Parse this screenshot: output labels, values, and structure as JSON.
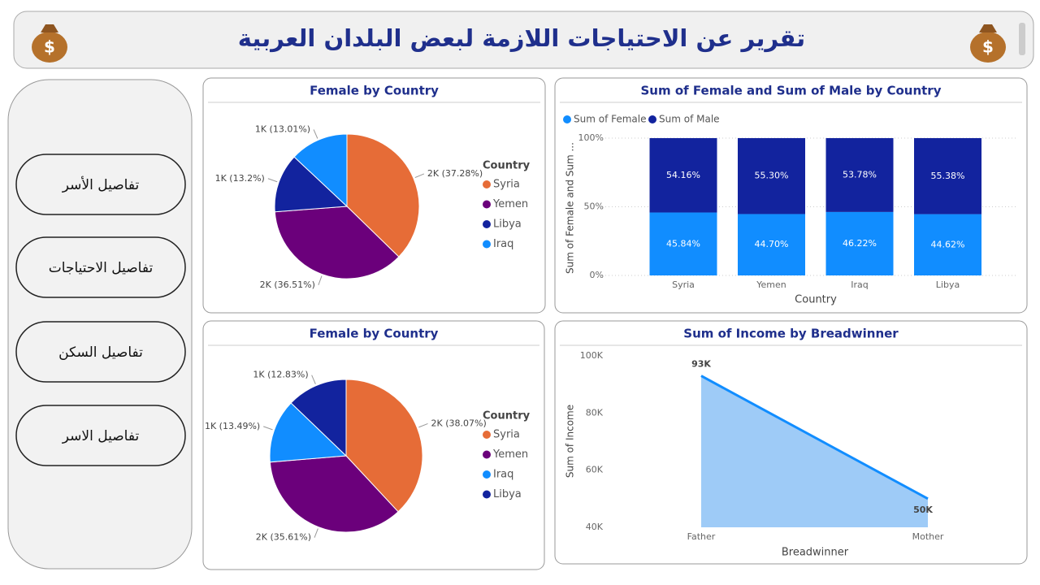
{
  "header": {
    "title": "تقرير عن الاحتياجات اللازمة لبعض البلدان العربية"
  },
  "nav": [
    "تفاصيل الأسر",
    "تفاصيل الاحتياجات",
    "تفاصيل السكن",
    "تفاصيل الاسر"
  ],
  "chart_data": [
    {
      "type": "pie",
      "title": "Female by Country",
      "legend_title": "Country",
      "categories": [
        "Syria",
        "Yemen",
        "Libya",
        "Iraq"
      ],
      "values": [
        37.28,
        36.51,
        13.2,
        13.01
      ],
      "value_labels": [
        "2K (37.28%)",
        "2K (36.51%)",
        "1K (13.2%)",
        "1K (13.01%)"
      ],
      "colors": [
        "#e66c37",
        "#6b007b",
        "#12239e",
        "#118dff"
      ]
    },
    {
      "type": "stacked100",
      "title": "Sum of Female and Sum of Male by Country",
      "x_label": "Country",
      "y_label": "Sum of Female and Sum ...",
      "categories": [
        "Syria",
        "Yemen",
        "Iraq",
        "Libya"
      ],
      "series": [
        {
          "name": "Sum of Female",
          "color": "#118dff",
          "values": [
            45.84,
            44.7,
            46.22,
            44.62
          ],
          "value_labels": [
            "45.84%",
            "44.70%",
            "46.22%",
            "44.62%"
          ]
        },
        {
          "name": "Sum of Male",
          "color": "#12239e",
          "values": [
            54.16,
            55.3,
            53.78,
            55.38
          ],
          "value_labels": [
            "54.16%",
            "55.30%",
            "53.78%",
            "55.38%"
          ]
        }
      ],
      "ylim": [
        0,
        100
      ],
      "yticks": [
        {
          "value": 0,
          "label": "0%"
        },
        {
          "value": 50,
          "label": "50%"
        },
        {
          "value": 100,
          "label": "100%"
        }
      ],
      "grid": true
    },
    {
      "type": "pie",
      "title": "Female by Country",
      "legend_title": "Country",
      "categories": [
        "Syria",
        "Yemen",
        "Iraq",
        "Libya"
      ],
      "values": [
        38.07,
        35.61,
        13.49,
        12.83
      ],
      "value_labels": [
        "2K (38.07%)",
        "2K (35.61%)",
        "1K (13.49%)",
        "1K (12.83%)"
      ],
      "colors": [
        "#e66c37",
        "#6b007b",
        "#118dff",
        "#12239e"
      ]
    },
    {
      "type": "area",
      "title": "Sum of Income by Breadwinner",
      "x_label": "Breadwinner",
      "y_label": "Sum of Income",
      "categories": [
        "Father",
        "Mother"
      ],
      "values": [
        93000,
        50000
      ],
      "value_labels": [
        "93K",
        "50K"
      ],
      "color": "#118dff",
      "ylim": [
        40000,
        100000
      ],
      "yticks": [
        {
          "value": 40000,
          "label": "40K"
        },
        {
          "value": 60000,
          "label": "60K"
        },
        {
          "value": 80000,
          "label": "80K"
        },
        {
          "value": 100000,
          "label": "100K"
        }
      ]
    }
  ]
}
